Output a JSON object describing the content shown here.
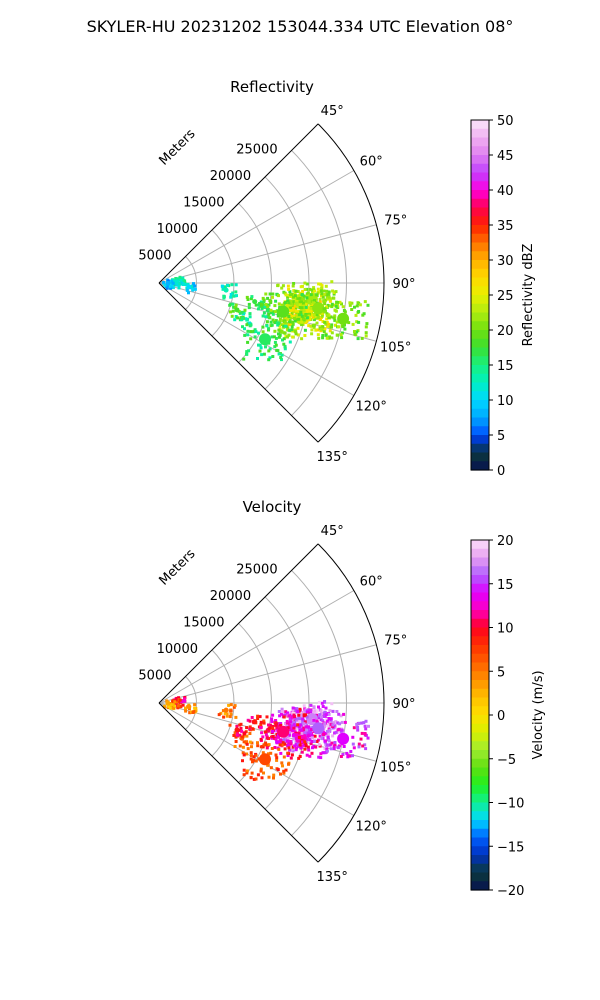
{
  "figure_title": "SKYLER-HU  20231202  153044.334 UTC Elevation 08°",
  "panels": [
    {
      "title": "Reflectivity",
      "radial_label": "Meters",
      "range_labels": [
        "5000",
        "10000",
        "15000",
        "20000",
        "25000"
      ],
      "angle_labels": [
        "45°",
        "60°",
        "75°",
        "90°",
        "105°",
        "120°",
        "135°"
      ],
      "colorbar": {
        "label": "Reflectivity dBZ",
        "ticks": [
          "0",
          "5",
          "10",
          "15",
          "20",
          "25",
          "30",
          "35",
          "40",
          "45",
          "50"
        ]
      }
    },
    {
      "title": "Velocity",
      "radial_label": "Meters",
      "range_labels": [
        "5000",
        "10000",
        "15000",
        "20000",
        "25000"
      ],
      "angle_labels": [
        "45°",
        "60°",
        "75°",
        "90°",
        "105°",
        "120°",
        "135°"
      ],
      "colorbar": {
        "label": "Velocity (m/s)",
        "ticks": [
          "20",
          "15",
          "10",
          "5",
          "0",
          "−5",
          "−10",
          "−15",
          "−20"
        ]
      }
    }
  ],
  "chart_data": [
    {
      "type": "heatmap",
      "title": "Reflectivity",
      "projection": "polar-sector",
      "theta_range_deg": [
        45,
        135
      ],
      "r_range_m": [
        0,
        30000
      ],
      "r_ticks_m": [
        5000,
        10000,
        15000,
        20000,
        25000
      ],
      "theta_ticks_deg": [
        45,
        60,
        75,
        90,
        105,
        120,
        135
      ],
      "grid": true,
      "colorbar_range": [
        0,
        50
      ],
      "units": "dBZ",
      "echoes": [
        {
          "az": 80,
          "r_m": 2500,
          "value": 14
        },
        {
          "az": 85,
          "r_m": 2000,
          "value": 12
        },
        {
          "az": 92,
          "r_m": 1200,
          "value": 8
        },
        {
          "az": 97,
          "r_m": 4000,
          "value": 10
        },
        {
          "az": 96,
          "r_m": 9000,
          "value": 13
        },
        {
          "az": 101,
          "r_m": 13000,
          "value": 17
        },
        {
          "az": 104,
          "r_m": 15000,
          "value": 16
        },
        {
          "az": 100,
          "r_m": 18000,
          "value": 20
        },
        {
          "az": 98,
          "r_m": 19000,
          "value": 24
        },
        {
          "az": 101,
          "r_m": 20000,
          "value": 26
        },
        {
          "az": 96,
          "r_m": 20500,
          "value": 22
        },
        {
          "az": 104,
          "r_m": 19500,
          "value": 23
        },
        {
          "az": 99,
          "r_m": 21500,
          "value": 21
        },
        {
          "az": 103,
          "r_m": 17000,
          "value": 19
        },
        {
          "az": 113,
          "r_m": 12000,
          "value": 14
        },
        {
          "az": 118,
          "r_m": 16000,
          "value": 16
        },
        {
          "az": 109,
          "r_m": 11000,
          "value": 18
        },
        {
          "az": 101,
          "r_m": 25000,
          "value": 20
        }
      ]
    },
    {
      "type": "heatmap",
      "title": "Velocity",
      "projection": "polar-sector",
      "theta_range_deg": [
        45,
        135
      ],
      "r_range_m": [
        0,
        30000
      ],
      "r_ticks_m": [
        5000,
        10000,
        15000,
        20000,
        25000
      ],
      "theta_ticks_deg": [
        45,
        60,
        75,
        90,
        105,
        120,
        135
      ],
      "grid": true,
      "colorbar_range": [
        -20,
        20
      ],
      "units": "m/s",
      "echoes": [
        {
          "az": 80,
          "r_m": 2500,
          "value": 10
        },
        {
          "az": 85,
          "r_m": 2000,
          "value": 8
        },
        {
          "az": 92,
          "r_m": 1200,
          "value": 3
        },
        {
          "az": 97,
          "r_m": 4000,
          "value": 4
        },
        {
          "az": 96,
          "r_m": 9000,
          "value": 5
        },
        {
          "az": 101,
          "r_m": 13000,
          "value": 9
        },
        {
          "az": 104,
          "r_m": 15000,
          "value": 11
        },
        {
          "az": 100,
          "r_m": 18000,
          "value": 12
        },
        {
          "az": 98,
          "r_m": 19000,
          "value": 16
        },
        {
          "az": 101,
          "r_m": 20000,
          "value": 15
        },
        {
          "az": 96,
          "r_m": 20500,
          "value": 17
        },
        {
          "az": 104,
          "r_m": 19500,
          "value": 12
        },
        {
          "az": 99,
          "r_m": 21500,
          "value": 16
        },
        {
          "az": 103,
          "r_m": 17000,
          "value": 11
        },
        {
          "az": 113,
          "r_m": 12000,
          "value": 6
        },
        {
          "az": 118,
          "r_m": 16000,
          "value": 7
        },
        {
          "az": 109,
          "r_m": 11000,
          "value": 9
        },
        {
          "az": 101,
          "r_m": 25000,
          "value": 14
        }
      ]
    }
  ]
}
